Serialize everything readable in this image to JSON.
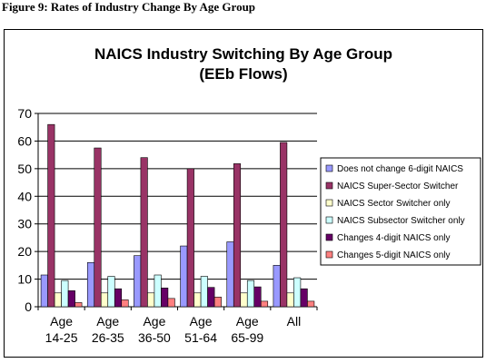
{
  "figure_caption": "Figure 9: Rates of Industry Change By Age Group",
  "colors": {
    "series": [
      "#9999ff",
      "#993366",
      "#ffffcc",
      "#ccffff",
      "#660066",
      "#ff8080"
    ],
    "plot_background": "#ffffff",
    "gridline": "#000000"
  },
  "chart_data": {
    "type": "bar",
    "title": [
      "NAICS Industry Switching By Age Group",
      "(EEb Flows)"
    ],
    "xlabel": "",
    "ylabel": "",
    "categories": [
      [
        "Age",
        "14-25"
      ],
      [
        "Age",
        "26-35"
      ],
      [
        "Age",
        "36-50"
      ],
      [
        "Age",
        "51-64"
      ],
      [
        "Age",
        "65-99"
      ],
      [
        "All"
      ]
    ],
    "ylim": [
      0,
      70
    ],
    "yticks": [
      0,
      10,
      20,
      30,
      40,
      50,
      60,
      70
    ],
    "grid": true,
    "legend_position": "right",
    "series": [
      {
        "name": "Does not change 6-digit NAICS",
        "values": [
          11.5,
          16.0,
          18.5,
          22.0,
          23.5,
          15.0
        ]
      },
      {
        "name": "NAICS Super-Sector Switcher",
        "values": [
          66.0,
          57.5,
          54.0,
          50.0,
          51.8,
          59.5
        ]
      },
      {
        "name": "NAICS Sector Switcher only",
        "values": [
          5.0,
          5.0,
          5.0,
          5.0,
          5.0,
          5.0
        ]
      },
      {
        "name": "NAICS Subsector Switcher only",
        "values": [
          9.5,
          11.0,
          11.5,
          11.0,
          9.5,
          10.5
        ]
      },
      {
        "name": "Changes 4-digit NAICS only",
        "values": [
          5.8,
          6.5,
          6.8,
          7.0,
          7.2,
          6.5
        ]
      },
      {
        "name": "Changes 5-digit NAICS only",
        "values": [
          1.5,
          2.5,
          3.0,
          3.5,
          2.0,
          2.0
        ]
      }
    ]
  }
}
